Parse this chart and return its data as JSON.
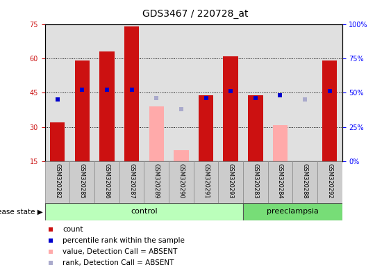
{
  "title": "GDS3467 / 220728_at",
  "samples": [
    "GSM320282",
    "GSM320285",
    "GSM320286",
    "GSM320287",
    "GSM320289",
    "GSM320290",
    "GSM320291",
    "GSM320293",
    "GSM320283",
    "GSM320284",
    "GSM320288",
    "GSM320292"
  ],
  "disease_state": [
    "control",
    "control",
    "control",
    "control",
    "control",
    "control",
    "control",
    "control",
    "preeclampsia",
    "preeclampsia",
    "preeclampsia",
    "preeclampsia"
  ],
  "count_values": [
    32,
    59,
    63,
    74,
    null,
    null,
    44,
    61,
    44,
    null,
    null,
    59
  ],
  "percentile_values": [
    45,
    52,
    52,
    52,
    null,
    null,
    46,
    51,
    46,
    48,
    null,
    51
  ],
  "absent_value_values": [
    null,
    null,
    null,
    null,
    39,
    20,
    null,
    null,
    null,
    31,
    null,
    null
  ],
  "absent_rank_values": [
    null,
    null,
    null,
    null,
    46,
    38,
    null,
    null,
    null,
    null,
    45,
    null
  ],
  "count_color": "#cc1111",
  "percentile_color": "#0000cc",
  "absent_value_color": "#ffaaaa",
  "absent_rank_color": "#aaaacc",
  "ylim_left": [
    15,
    75
  ],
  "ylim_right": [
    0,
    100
  ],
  "yticks_left": [
    15,
    30,
    45,
    60,
    75
  ],
  "yticks_right": [
    0,
    25,
    50,
    75,
    100
  ],
  "ytick_labels_right": [
    "0%",
    "25%",
    "50%",
    "75%",
    "100%"
  ],
  "control_color": "#bbffbb",
  "preeclampsia_color": "#77dd77",
  "bar_bg_color": "#cccccc",
  "title_fontsize": 10,
  "tick_fontsize": 7,
  "sample_fontsize": 6,
  "legend_fontsize": 7.5
}
